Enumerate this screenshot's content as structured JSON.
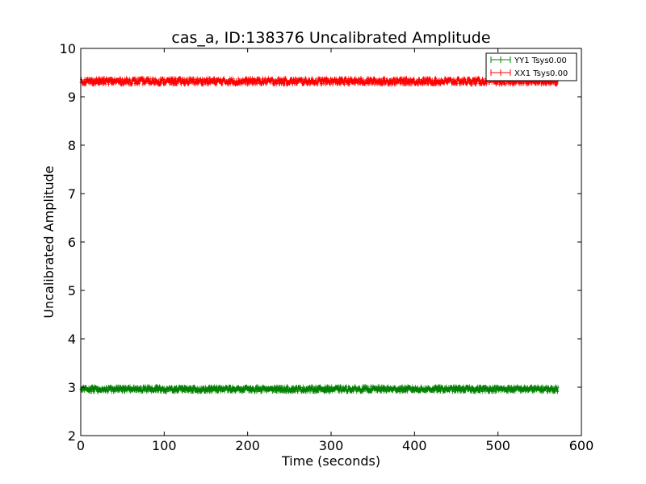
{
  "chart_data": {
    "type": "line",
    "title": "cas_a, ID:138376 Uncalibrated Amplitude",
    "xlabel": "Time (seconds)",
    "ylabel": "Uncalibrated Amplitude",
    "xlim": [
      0,
      600
    ],
    "ylim": [
      2,
      10
    ],
    "xticks": [
      "0",
      "100",
      "200",
      "300",
      "400",
      "500",
      "600"
    ],
    "yticks": [
      "2",
      "3",
      "4",
      "5",
      "6",
      "7",
      "8",
      "9",
      "10"
    ],
    "grid": false,
    "legend_position": "top-right",
    "x_range_data": [
      0,
      572
    ],
    "series": [
      {
        "name": "YY1 Tsys0.00",
        "color": "#008000",
        "mean": 2.96,
        "spread": 0.05,
        "marker": "+"
      },
      {
        "name": "XX1 Tsys0.00",
        "color": "#ff0000",
        "mean": 9.32,
        "spread": 0.06,
        "marker": "+"
      }
    ]
  }
}
